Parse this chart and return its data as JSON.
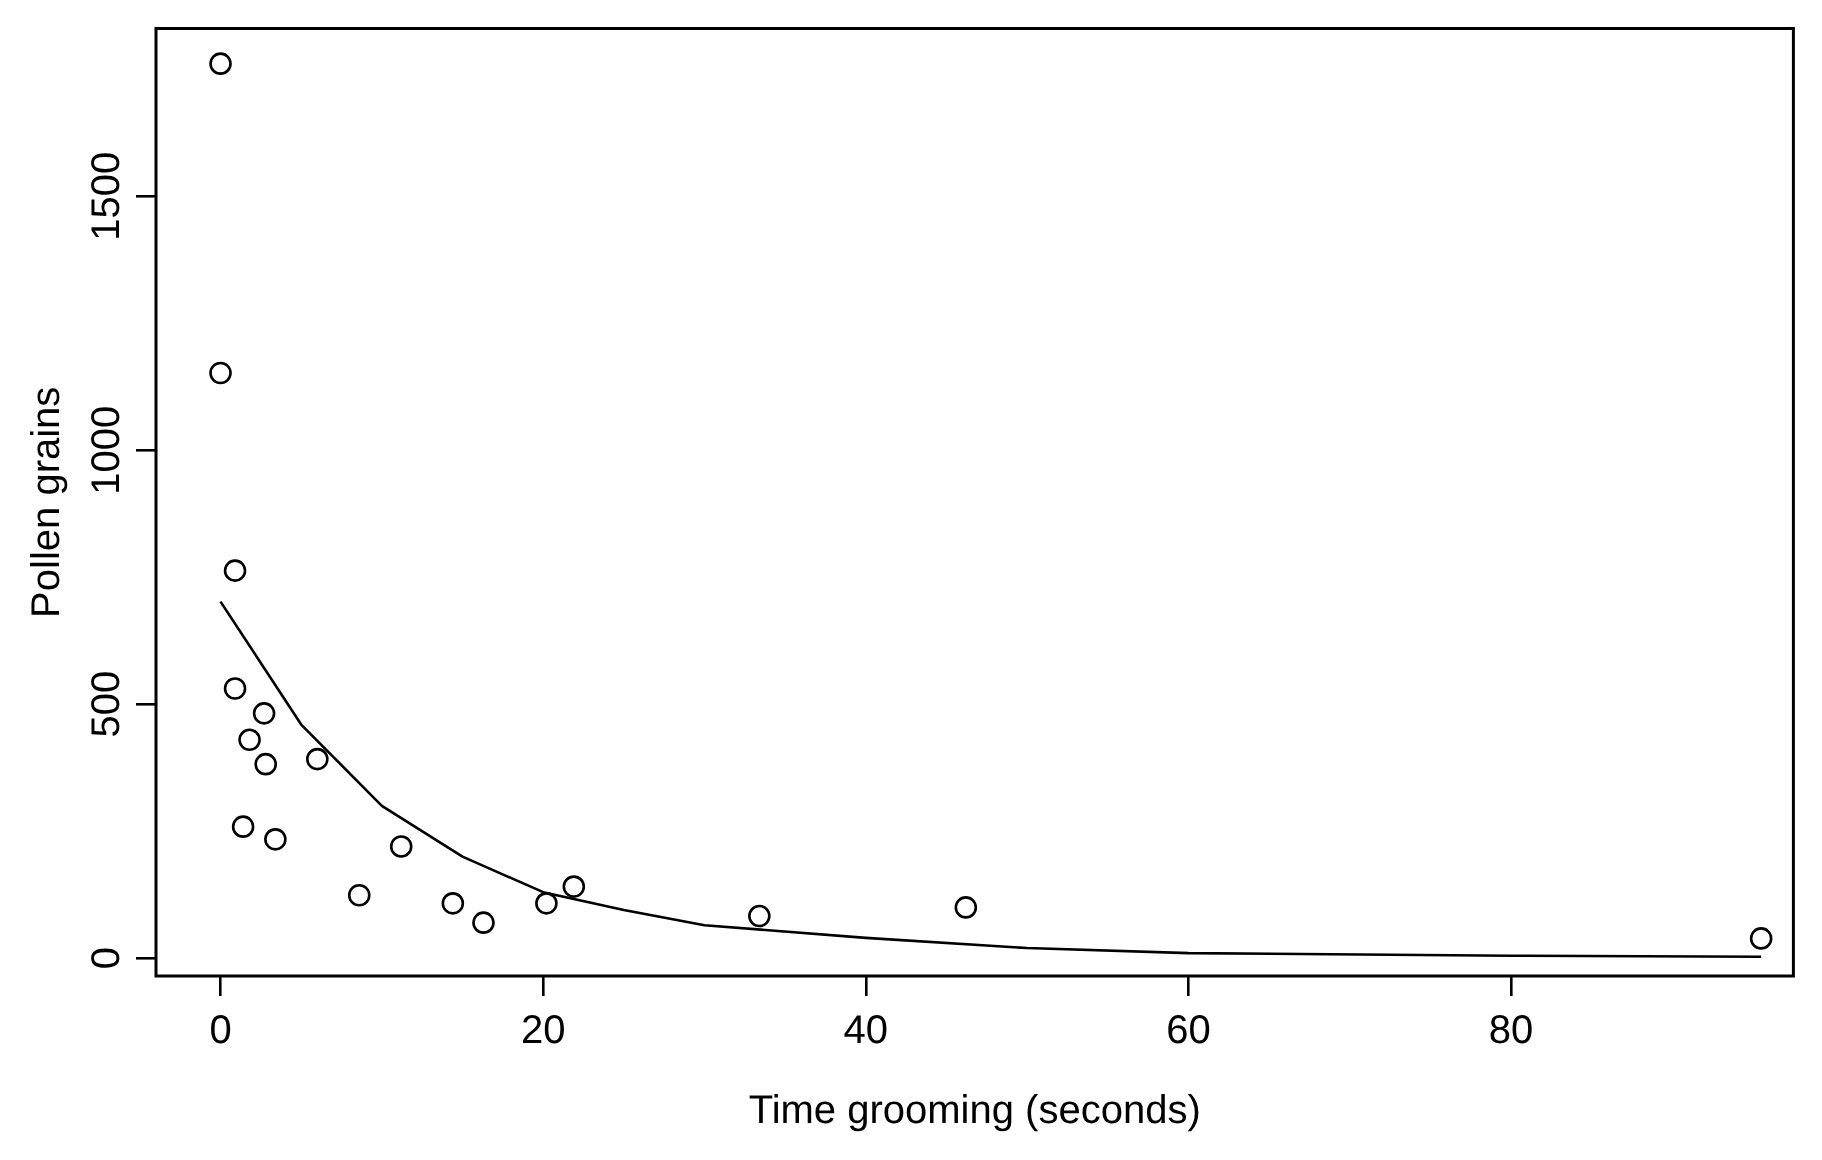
{
  "chart_data": {
    "type": "scatter",
    "xlabel": "Time grooming (seconds)",
    "ylabel": "Pollen grains",
    "xlim": [
      -4,
      97.5
    ],
    "ylim": [
      -35,
      1830
    ],
    "xticks": [
      0,
      20,
      40,
      60,
      80
    ],
    "yticks": [
      0,
      500,
      1000,
      1500
    ],
    "grid": false,
    "legend": false,
    "marker": "circle",
    "series": [
      {
        "color": "#000000",
        "x": [
          0,
          0,
          0.9,
          0.9,
          2.7,
          1.8,
          2.8,
          1.4,
          3.4,
          6.0,
          11.2,
          8.6,
          14.4,
          16.3,
          20.2,
          21.9,
          33.4,
          46.2,
          95.5
        ],
        "values": [
          1761,
          1152,
          763,
          531,
          482,
          430,
          382,
          259,
          234,
          392,
          220,
          124,
          108,
          70,
          108,
          141,
          83,
          100,
          39
        ]
      },
      {
        "type": "line",
        "color": "#000000",
        "marker": "none",
        "x": [
          0,
          5,
          10,
          15,
          20,
          25,
          30,
          40,
          50,
          60,
          80,
          95.5
        ],
        "values": [
          702,
          460,
          300,
          200,
          130,
          95,
          65,
          40,
          20,
          10,
          5,
          3
        ]
      }
    ]
  }
}
